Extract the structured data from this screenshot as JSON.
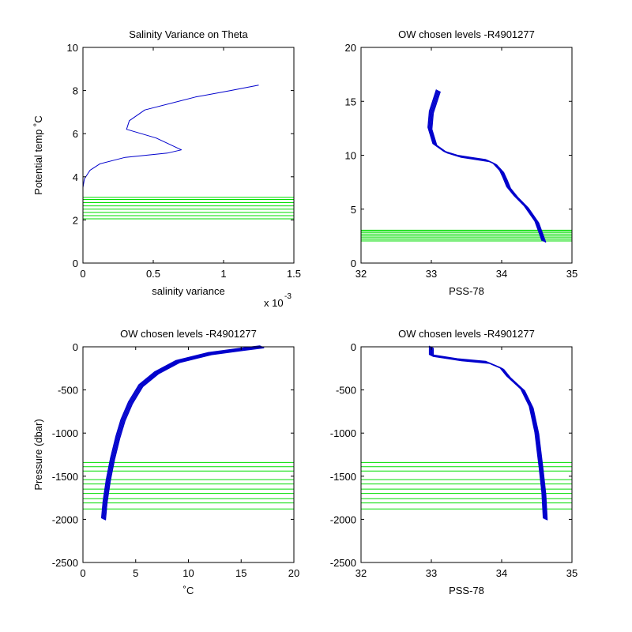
{
  "figure": {
    "background": "#ffffff",
    "trace_color": "#0000cc",
    "level_color": "#00dd00"
  },
  "chart_data": [
    {
      "type": "line",
      "title": "Salinity Variance on Theta",
      "xlabel": "salinity variance",
      "ylabel": "Potential temp ˚C",
      "x_exponent_label": "x 10",
      "x_exponent": "-3",
      "xlim": [
        0,
        1.5
      ],
      "ylim": [
        0,
        10
      ],
      "xticks": [
        0,
        0.5,
        1,
        1.5
      ],
      "xtick_labels": [
        "0",
        "0.5",
        "1",
        "1.5"
      ],
      "yticks": [
        0,
        2,
        4,
        6,
        8,
        10
      ],
      "ytick_labels": [
        "0",
        "2",
        "4",
        "6",
        "8",
        "10"
      ],
      "grid": false,
      "series": [
        {
          "x": [
            0,
            0.01,
            0.05,
            0.12,
            0.3,
            0.45,
            0.6,
            0.7,
            0.52,
            0.31,
            0.33,
            0.44,
            0.8,
            1.05,
            1.25
          ],
          "y": [
            3.5,
            3.9,
            4.3,
            4.6,
            4.9,
            5.0,
            5.1,
            5.25,
            5.8,
            6.2,
            6.6,
            7.1,
            7.7,
            8.0,
            8.25
          ]
        }
      ],
      "chosen_levels": [
        2.05,
        2.2,
        2.35,
        2.5,
        2.65,
        2.8,
        2.95,
        3.05
      ]
    },
    {
      "type": "line",
      "title": "OW chosen levels -R4901277",
      "xlabel": "PSS-78",
      "ylabel": "",
      "xlim": [
        32,
        35
      ],
      "ylim": [
        0,
        20
      ],
      "xticks": [
        32,
        33,
        34,
        35
      ],
      "xtick_labels": [
        "32",
        "33",
        "34",
        "35"
      ],
      "yticks": [
        0,
        5,
        10,
        15,
        20
      ],
      "ytick_labels": [
        "0",
        "5",
        "10",
        "15",
        "20"
      ],
      "grid": false,
      "series": [
        {
          "x": [
            33.1,
            33.0,
            32.98,
            33.05,
            33.2,
            33.4,
            33.6,
            33.8,
            33.9,
            34.0,
            34.05,
            34.1,
            34.2,
            34.35,
            34.5,
            34.6
          ],
          "y": [
            16,
            14,
            12.5,
            11,
            10.3,
            9.9,
            9.7,
            9.5,
            9.2,
            8.5,
            7.8,
            7.0,
            6.2,
            5.2,
            3.8,
            2.0
          ]
        }
      ],
      "chosen_levels": [
        2.05,
        2.2,
        2.35,
        2.5,
        2.65,
        2.8,
        2.95,
        3.05
      ]
    },
    {
      "type": "line",
      "title": "OW chosen levels -R4901277",
      "xlabel": "˚C",
      "ylabel": "Pressure (dbar)",
      "xlim": [
        0,
        20
      ],
      "ylim": [
        -2500,
        0
      ],
      "xticks": [
        0,
        5,
        10,
        15,
        20
      ],
      "xtick_labels": [
        "0",
        "5",
        "10",
        "15",
        "20"
      ],
      "yticks": [
        -2500,
        -2000,
        -1500,
        -1000,
        -500,
        0
      ],
      "ytick_labels": [
        "-2500",
        "-2000",
        "-1500",
        "-1000",
        "-500",
        "0"
      ],
      "grid": false,
      "series": [
        {
          "x": [
            17,
            15,
            12,
            9,
            7,
            5.5,
            4.5,
            3.8,
            3.3,
            2.8,
            2.4,
            2.1,
            1.95
          ],
          "y": [
            0,
            -30,
            -80,
            -170,
            -300,
            -450,
            -650,
            -850,
            -1050,
            -1300,
            -1550,
            -1800,
            -2000
          ]
        }
      ],
      "chosen_levels": [
        -1340,
        -1390,
        -1440,
        -1540,
        -1590,
        -1650,
        -1700,
        -1760,
        -1810,
        -1880
      ]
    },
    {
      "type": "line",
      "title": "OW chosen levels -R4901277",
      "xlabel": "PSS-78",
      "ylabel": "",
      "xlim": [
        32,
        35
      ],
      "ylim": [
        -2500,
        0
      ],
      "xticks": [
        32,
        33,
        34,
        35
      ],
      "xtick_labels": [
        "32",
        "33",
        "34",
        "35"
      ],
      "yticks": [
        -2500,
        -2000,
        -1500,
        -1000,
        -500,
        0
      ],
      "ytick_labels": [
        "-2500",
        "-2000",
        "-1500",
        "-1000",
        "-500",
        "0"
      ],
      "grid": false,
      "series": [
        {
          "x": [
            33.0,
            33.0,
            33.4,
            33.8,
            34.0,
            34.1,
            34.3,
            34.42,
            34.5,
            34.56,
            34.6,
            34.62
          ],
          "y": [
            0,
            -100,
            -150,
            -180,
            -250,
            -350,
            -500,
            -700,
            -1000,
            -1400,
            -1700,
            -2000
          ]
        }
      ],
      "chosen_levels": [
        -1340,
        -1390,
        -1440,
        -1540,
        -1590,
        -1650,
        -1700,
        -1760,
        -1810,
        -1880
      ]
    }
  ]
}
